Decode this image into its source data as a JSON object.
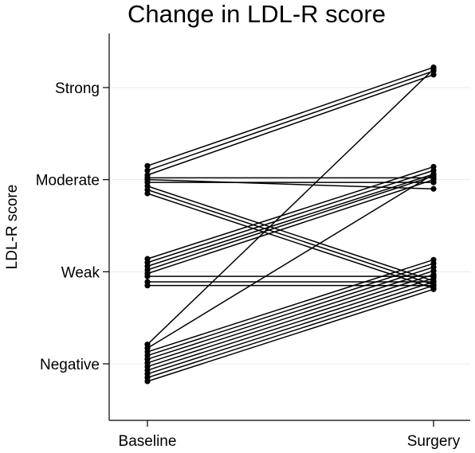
{
  "chart_data": {
    "type": "line",
    "title": "Change in LDL-R score",
    "xlabel": "",
    "ylabel": "LDL-R score",
    "x_categories": [
      "Baseline",
      "Surgery"
    ],
    "y_categories": [
      "Negative",
      "Weak",
      "Moderate",
      "Strong"
    ],
    "y_values": [
      1,
      2,
      3,
      4
    ],
    "ylim": [
      0.55,
      4.75
    ],
    "grid": "horizontal",
    "legend": "none",
    "line_color": "#000000",
    "grid_color": "#e6eaed",
    "series": [
      {
        "values": [
          3.15,
          4.22
        ]
      },
      {
        "values": [
          3.1,
          4.18
        ]
      },
      {
        "values": [
          3.05,
          4.14
        ]
      },
      {
        "values": [
          3.0,
          2.9
        ]
      },
      {
        "values": [
          3.02,
          3.02
        ]
      },
      {
        "values": [
          2.97,
          2.97
        ]
      },
      {
        "values": [
          2.93,
          1.9
        ]
      },
      {
        "values": [
          2.89,
          1.86
        ]
      },
      {
        "values": [
          2.85,
          1.82
        ]
      },
      {
        "values": [
          2.14,
          3.14
        ]
      },
      {
        "values": [
          2.1,
          3.1
        ]
      },
      {
        "values": [
          2.06,
          3.06
        ]
      },
      {
        "values": [
          2.02,
          3.04
        ]
      },
      {
        "values": [
          1.98,
          3.0
        ]
      },
      {
        "values": [
          1.95,
          1.95
        ]
      },
      {
        "values": [
          1.89,
          1.89
        ]
      },
      {
        "values": [
          1.85,
          1.85
        ]
      },
      {
        "values": [
          1.21,
          4.2
        ]
      },
      {
        "values": [
          1.17,
          3.06
        ]
      },
      {
        "values": [
          1.13,
          2.13
        ]
      },
      {
        "values": [
          1.09,
          2.09
        ]
      },
      {
        "values": [
          1.05,
          2.05
        ]
      },
      {
        "values": [
          1.01,
          2.01
        ]
      },
      {
        "values": [
          0.97,
          1.97
        ]
      },
      {
        "values": [
          0.93,
          1.93
        ]
      },
      {
        "values": [
          0.89,
          1.89
        ]
      },
      {
        "values": [
          0.85,
          1.85
        ]
      },
      {
        "values": [
          0.81,
          1.81
        ]
      }
    ]
  }
}
